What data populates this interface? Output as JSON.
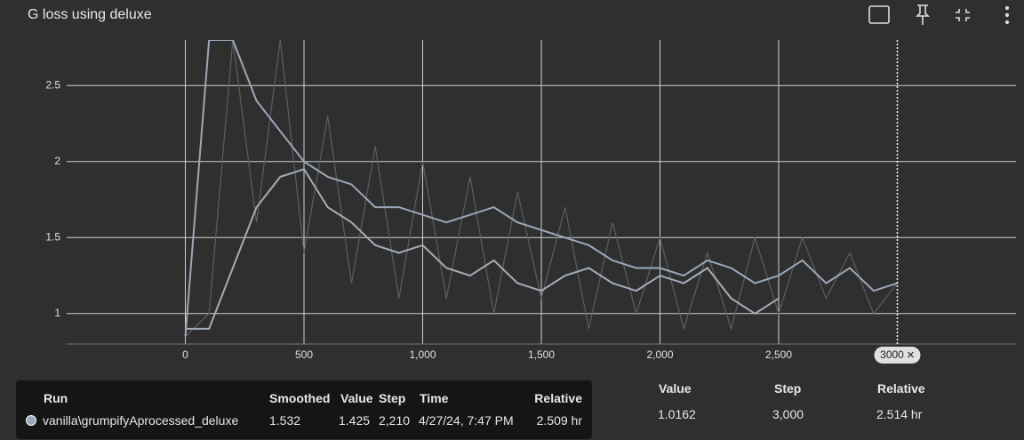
{
  "header": {
    "title": "G loss using deluxe"
  },
  "chart_data": {
    "type": "line",
    "x": [
      0,
      100,
      200,
      300,
      400,
      500,
      600,
      700,
      800,
      900,
      1000,
      1100,
      1200,
      1300,
      1400,
      1500,
      1600,
      1700,
      1800,
      1900,
      2000,
      2100,
      2200,
      2300,
      2400,
      2500,
      2600,
      2700,
      2800,
      2900,
      3000
    ],
    "series": [
      {
        "color": "#5e5e5e",
        "values": [
          0.85,
          1.0,
          2.8,
          1.6,
          2.8,
          1.4,
          2.3,
          1.2,
          2.1,
          1.1,
          2.0,
          1.1,
          1.9,
          1.0,
          1.8,
          1.1,
          1.7,
          0.9,
          1.6,
          1.0,
          1.5,
          0.9,
          1.4,
          0.9,
          1.5,
          1.0,
          1.5,
          1.1,
          1.4,
          1.0,
          1.2
        ]
      },
      {
        "color": "#a3adb9",
        "values": [
          0.9,
          0.9,
          1.3,
          1.7,
          1.9,
          1.95,
          1.7,
          1.6,
          1.45,
          1.4,
          1.45,
          1.3,
          1.25,
          1.35,
          1.2,
          1.15,
          1.25,
          1.3,
          1.2,
          1.15,
          1.25,
          1.2,
          1.3,
          1.1,
          1.0,
          1.1,
          null,
          null,
          null,
          null,
          null
        ]
      },
      {
        "name": "vanilla\\grumpifyAprocessed_deluxe",
        "color": "#9aa8b8",
        "values": [
          0.85,
          2.8,
          2.8,
          2.4,
          2.2,
          2.0,
          1.9,
          1.85,
          1.7,
          1.7,
          1.65,
          1.6,
          1.65,
          1.7,
          1.6,
          1.55,
          1.5,
          1.45,
          1.35,
          1.3,
          1.3,
          1.25,
          1.35,
          1.3,
          1.2,
          1.25,
          1.35,
          1.2,
          1.3,
          1.15,
          1.2
        ]
      }
    ],
    "xlim": [
      -500,
      3500
    ],
    "ylim": [
      0.8,
      2.8
    ],
    "xticks": [
      0,
      500,
      {
        "value": 1000,
        "label": "1,000"
      },
      {
        "value": 1500,
        "label": "1,500"
      },
      {
        "value": 2000,
        "label": "2,000"
      },
      {
        "value": 2500,
        "label": "2,500"
      }
    ],
    "yticks": [
      1,
      1.5,
      2,
      2.5
    ],
    "grid": true,
    "cursor": 3000
  },
  "tooltip": {
    "columns": [
      "Run",
      "Smoothed",
      "Value",
      "Step",
      "Time",
      "Relative"
    ],
    "row": [
      "vanilla\\grumpifyAprocessed_deluxe",
      "1.532",
      "1.425",
      "2,210",
      "4/27/24, 7:47 PM",
      "2.509 hr"
    ]
  },
  "table": {
    "columns": [
      "Value",
      "Step",
      "Relative"
    ],
    "row": [
      "1.0162",
      "3,000",
      "2.514 hr"
    ]
  }
}
